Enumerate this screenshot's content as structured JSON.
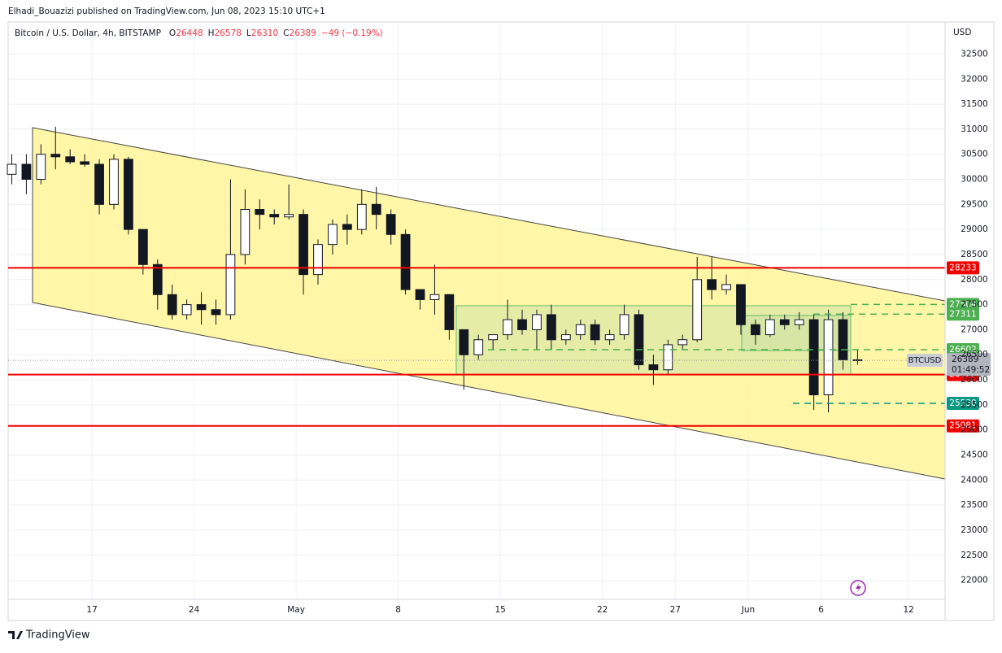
{
  "publisher": "Elhadi_Bouazizi published on TradingView.com, Jun 08, 2023 15:10 UTC+1",
  "header": {
    "symbol": "Bitcoin / U.S. Dollar, 4h, BITSTAMP",
    "ohlc": [
      {
        "label": "O",
        "value": 26448
      },
      {
        "label": "H",
        "value": 26578
      },
      {
        "label": "L",
        "value": 26310
      },
      {
        "label": "C",
        "value": 26389
      }
    ],
    "change": "−49 (−0.19%)"
  },
  "brand": "TradingView",
  "chart_data": {
    "type": "candlestick",
    "currency": "USD",
    "ticker": "BTCUSD",
    "last_price": 26389,
    "countdown": "01:49:52",
    "x": [
      "04-11",
      "04-12",
      "04-13",
      "04-14",
      "04-15",
      "04-16",
      "04-17",
      "04-18",
      "04-19",
      "04-20",
      "04-21",
      "04-22",
      "04-23",
      "04-24",
      "04-25",
      "04-26",
      "04-27",
      "04-28",
      "04-29",
      "04-30",
      "05-01",
      "05-02",
      "05-03",
      "05-04",
      "05-05",
      "05-06",
      "05-07",
      "05-08",
      "05-09",
      "05-10",
      "05-11",
      "05-12",
      "05-13",
      "05-14",
      "05-15",
      "05-16",
      "05-17",
      "05-18",
      "05-19",
      "05-20",
      "05-21",
      "05-22",
      "05-23",
      "05-24",
      "05-25",
      "05-26",
      "05-27",
      "05-28",
      "05-29",
      "05-30",
      "05-31",
      "06-01",
      "06-02",
      "06-03",
      "06-04",
      "06-05",
      "06-06",
      "06-07",
      "06-08"
    ],
    "open": [
      30100,
      30300,
      30000,
      30500,
      30450,
      30350,
      30300,
      29500,
      30400,
      29000,
      28300,
      27700,
      27300,
      27500,
      27400,
      27300,
      28500,
      29400,
      29300,
      29250,
      29300,
      28100,
      28700,
      29100,
      29000,
      29500,
      29300,
      28900,
      27800,
      27600,
      27700,
      27000,
      26500,
      26800,
      26900,
      27200,
      27000,
      27300,
      26800,
      26900,
      27100,
      26800,
      26900,
      27300,
      26300,
      26200,
      26700,
      26800,
      28000,
      27800,
      27900,
      27100,
      26900,
      27200,
      27100,
      27200,
      25700,
      27200,
      26400
    ],
    "high": [
      30500,
      30500,
      30700,
      31050,
      30600,
      30500,
      30400,
      30500,
      30450,
      29000,
      28400,
      27900,
      27600,
      27750,
      27600,
      30000,
      29800,
      29600,
      29400,
      29900,
      29400,
      28800,
      29200,
      29300,
      29800,
      29850,
      29400,
      29000,
      27800,
      28300,
      27700,
      27000,
      26900,
      26900,
      27600,
      27400,
      27400,
      27500,
      27000,
      27200,
      27200,
      27000,
      27500,
      27400,
      26500,
      26800,
      26900,
      28450,
      28450,
      28100,
      27900,
      27200,
      27300,
      27300,
      27350,
      27300,
      27400,
      27350,
      26600
    ],
    "low": [
      29900,
      29700,
      29900,
      30200,
      30300,
      30250,
      29300,
      29400,
      28900,
      28100,
      27400,
      27200,
      27200,
      27100,
      27100,
      27200,
      28300,
      29000,
      29100,
      29200,
      27700,
      27900,
      28500,
      28700,
      28900,
      29000,
      28700,
      27700,
      27400,
      27300,
      26800,
      25800,
      26400,
      26600,
      26800,
      26900,
      26600,
      26600,
      26700,
      26800,
      26700,
      26700,
      26800,
      26200,
      25900,
      26100,
      26600,
      26750,
      27600,
      27700,
      26900,
      26700,
      26850,
      27000,
      27000,
      25400,
      25350,
      26200,
      26300
    ],
    "close": [
      30300,
      30000,
      30500,
      30450,
      30350,
      30300,
      29500,
      30400,
      29000,
      28300,
      27700,
      27300,
      27500,
      27400,
      27300,
      28500,
      29400,
      29300,
      29250,
      29300,
      28100,
      28700,
      29100,
      29000,
      29500,
      29300,
      28900,
      27800,
      27600,
      27700,
      27000,
      26500,
      26800,
      26900,
      27200,
      27000,
      27300,
      26800,
      26900,
      27100,
      26800,
      26900,
      27300,
      26300,
      26200,
      26700,
      26800,
      28000,
      27800,
      27900,
      27100,
      26900,
      27200,
      27100,
      27200,
      25700,
      27200,
      26400,
      26389
    ],
    "xlim": [
      "04-11 06:00",
      "06-14 12:00"
    ],
    "xticks": [
      {
        "value": "04-17",
        "label": "17"
      },
      {
        "value": "04-24",
        "label": "24"
      },
      {
        "value": "05-01",
        "label": "May"
      },
      {
        "value": "05-08",
        "label": "8"
      },
      {
        "value": "05-15",
        "label": "15"
      },
      {
        "value": "05-22",
        "label": "22"
      },
      {
        "value": "05-27",
        "label": "27"
      },
      {
        "value": "06-01",
        "label": "Jun"
      },
      {
        "value": "06-06",
        "label": "6"
      },
      {
        "value": "06-12",
        "label": "12"
      }
    ],
    "ylim": [
      21620,
      33140
    ],
    "yticks": [
      22000,
      22500,
      23000,
      23500,
      24000,
      24500,
      25000,
      25500,
      26000,
      26500,
      27000,
      27500,
      28000,
      28500,
      29000,
      29500,
      30000,
      30500,
      31000,
      31500,
      32000,
      32500
    ],
    "grid": true,
    "levels": [
      {
        "value": 28233,
        "color": "#f20000",
        "style": "solid"
      },
      {
        "value": 27504,
        "color": "#4caf50",
        "style": "dashed"
      },
      {
        "value": 27311,
        "color": "#4caf50",
        "style": "dashed"
      },
      {
        "value": 26602,
        "color": "#4caf50",
        "style": "dashed"
      },
      {
        "value": 26105,
        "color": "#f20000",
        "style": "solid"
      },
      {
        "value": 25530,
        "color": "#089981",
        "style": "dashed"
      },
      {
        "value": 25081,
        "color": "#f20000",
        "style": "solid"
      }
    ]
  }
}
